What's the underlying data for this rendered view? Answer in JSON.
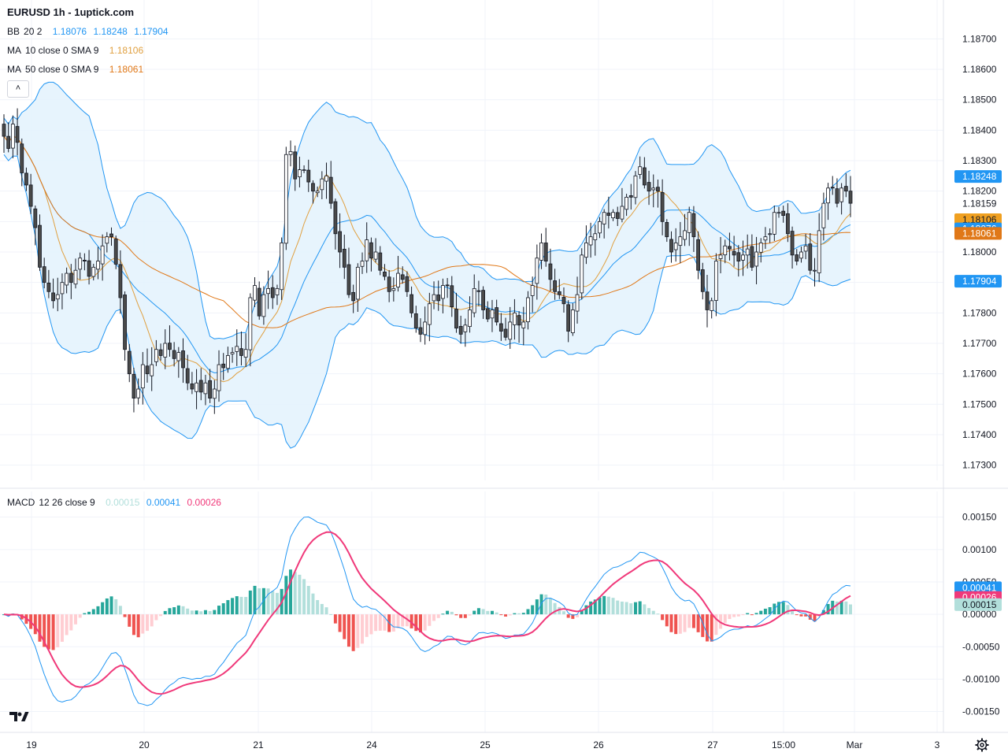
{
  "header": {
    "title": "EURUSD 1h - 1uptick.com"
  },
  "legend": {
    "bb": {
      "name": "BB",
      "params": "20 2",
      "basis": "1.18076",
      "upper": "1.18248",
      "lower": "1.17904"
    },
    "ma10": {
      "name": "MA",
      "params": "10 close 0 SMA 9",
      "value": "1.18106"
    },
    "ma50": {
      "name": "MA",
      "params": "50 close 0 SMA 9",
      "value": "1.18061"
    },
    "macd": {
      "name": "MACD",
      "params": "12 26 close 9",
      "hist": "0.00015",
      "macd": "0.00041",
      "signal": "0.00026"
    }
  },
  "colors": {
    "up": "#26a69a",
    "down": "#ef5350",
    "candle_body": "#4a4a4a",
    "bb_line": "#2196f3",
    "bb_fill": "#e3f2fd",
    "ma10": "#e0a040",
    "ma50": "#e07818",
    "macd_line": "#2196f3",
    "signal_line": "#f0397a",
    "hist_up_strong": "#26a69a",
    "hist_up_weak": "#b2dfdb",
    "hist_down_strong": "#ef5350",
    "hist_down_weak": "#ffcdd2"
  },
  "icons": {
    "collapse": "chevron-up-icon",
    "logo": "tradingview-logo-icon",
    "settings": "gear-icon"
  },
  "chart_data": [
    {
      "type": "candlestick",
      "title": "EURUSD 1h",
      "ylim": [
        1.1725,
        1.1875
      ],
      "y_ticks": [
        "1.17300",
        "1.17400",
        "1.17500",
        "1.17600",
        "1.17700",
        "1.17800",
        "1.17900",
        "1.18000",
        "1.18100",
        "1.18200",
        "1.18300",
        "1.18400",
        "1.18500",
        "1.18600",
        "1.18700"
      ],
      "x_ticks": [
        "19",
        "20",
        "21",
        "24",
        "25",
        "26",
        "27",
        "15:00",
        "Mar",
        "3"
      ],
      "price_labels": [
        {
          "value": "1.18248",
          "price": 1.18248,
          "kind": "bb_upper"
        },
        {
          "value": "1.18200",
          "price": 1.182,
          "kind": "tick"
        },
        {
          "value": "1.18159",
          "price": 1.18159,
          "kind": "last"
        },
        {
          "value": "1.18106",
          "price": 1.18106,
          "kind": "ma10"
        },
        {
          "value": "1.18076",
          "price": 1.18076,
          "kind": "bb_basis"
        },
        {
          "value": "1.18061",
          "price": 1.18061,
          "kind": "ma50"
        },
        {
          "value": "1.17904",
          "price": 1.17904,
          "kind": "bb_lower"
        }
      ],
      "closes": [
        1.1838,
        1.1834,
        1.1842,
        1.1836,
        1.1826,
        1.1822,
        1.1815,
        1.1808,
        1.1795,
        1.179,
        1.1787,
        1.1784,
        1.1786,
        1.179,
        1.1793,
        1.179,
        1.1794,
        1.1798,
        1.1797,
        1.1792,
        1.1795,
        1.1797,
        1.1802,
        1.1805,
        1.1805,
        1.1796,
        1.1785,
        1.1768,
        1.176,
        1.1752,
        1.1755,
        1.1763,
        1.176,
        1.1763,
        1.1768,
        1.1766,
        1.177,
        1.1768,
        1.1765,
        1.1767,
        1.1762,
        1.1757,
        1.1755,
        1.1757,
        1.1754,
        1.1757,
        1.1752,
        1.1755,
        1.1763,
        1.1762,
        1.1766,
        1.1767,
        1.1769,
        1.1766,
        1.1768,
        1.1785,
        1.1789,
        1.1779,
        1.1786,
        1.1788,
        1.1785,
        1.1788,
        1.1803,
        1.1832,
        1.1833,
        1.1824,
        1.1827,
        1.1827,
        1.1823,
        1.182,
        1.182,
        1.1824,
        1.1825,
        1.1816,
        1.1806,
        1.18,
        1.1795,
        1.1786,
        1.1784,
        1.1795,
        1.1797,
        1.1804,
        1.1798,
        1.18,
        1.1794,
        1.1792,
        1.1787,
        1.1788,
        1.1793,
        1.1791,
        1.1787,
        1.178,
        1.1775,
        1.1773,
        1.1777,
        1.1783,
        1.1786,
        1.1784,
        1.1789,
        1.1789,
        1.1782,
        1.1775,
        1.1773,
        1.1776,
        1.1781,
        1.1788,
        1.1787,
        1.1781,
        1.1778,
        1.1781,
        1.1777,
        1.1774,
        1.1772,
        1.1777,
        1.178,
        1.1776,
        1.1777,
        1.1785,
        1.1789,
        1.1798,
        1.1803,
        1.1797,
        1.1791,
        1.1787,
        1.1786,
        1.1783,
        1.1774,
        1.1781,
        1.1786,
        1.1799,
        1.1803,
        1.1805,
        1.1806,
        1.181,
        1.1813,
        1.1812,
        1.1813,
        1.1811,
        1.1815,
        1.1818,
        1.1818,
        1.1825,
        1.1828,
        1.1822,
        1.182,
        1.1821,
        1.182,
        1.181,
        1.1805,
        1.18,
        1.1803,
        1.1805,
        1.1807,
        1.1813,
        1.1805,
        1.1794,
        1.1787,
        1.1781,
        1.1784,
        1.1797,
        1.1799,
        1.1802,
        1.1801,
        1.1799,
        1.1797,
        1.1799,
        1.1801,
        1.1795,
        1.18,
        1.1803,
        1.1805,
        1.1806,
        1.1813,
        1.1813,
        1.1812,
        1.1806,
        1.1799,
        1.1797,
        1.18,
        1.1802,
        1.1794,
        1.1794,
        1.1807,
        1.1816,
        1.1821,
        1.1821,
        1.1816,
        1.1821,
        1.182,
        1.1816
      ],
      "series": [
        {
          "name": "BB 20 2",
          "last": {
            "basis": 1.18076,
            "upper": 1.18248,
            "lower": 1.17904
          }
        },
        {
          "name": "MA 10 close 0 SMA 9",
          "last": 1.18106
        },
        {
          "name": "MA 50 close 0 SMA 9",
          "last": 1.18061
        }
      ]
    },
    {
      "type": "bar",
      "title": "MACD 12 26 close 9",
      "ylim": [
        -0.0017,
        0.0018
      ],
      "y_ticks": [
        "0.00150",
        "0.00100",
        "0.00050",
        "0.00000",
        "-0.00050",
        "-0.00100",
        "-0.00150"
      ],
      "last_values": {
        "histogram": 0.00015,
        "macd": 0.00041,
        "signal": 0.00026
      },
      "value_labels": [
        {
          "value": "0.00041",
          "kind": "macd"
        },
        {
          "value": "0.00026",
          "kind": "signal"
        },
        {
          "value": "0.00015",
          "kind": "histogram"
        }
      ]
    }
  ]
}
